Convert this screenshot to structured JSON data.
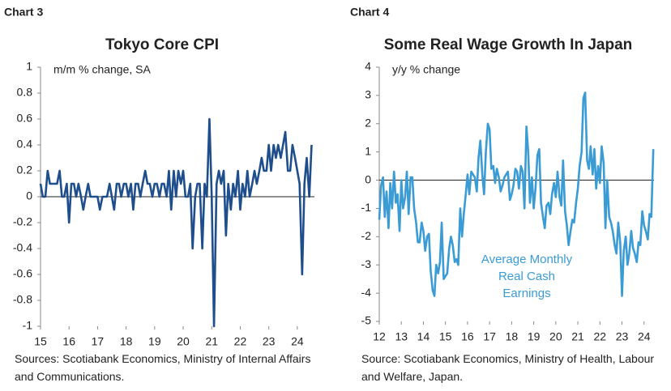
{
  "chart_data": [
    {
      "type": "line",
      "label": "Chart 3",
      "title": "Tokyo Core CPI",
      "ylabel": "m/m % change, SA",
      "source": "Sources: Scotiabank Economics, Ministry of Internal Affairs and Communications.",
      "xlim": [
        15,
        24.6
      ],
      "xticks": [
        15,
        16,
        17,
        18,
        19,
        20,
        21,
        22,
        23,
        24
      ],
      "ylim": [
        -1,
        1
      ],
      "yticks": [
        -1,
        -0.8,
        -0.6,
        -0.4,
        -0.2,
        0,
        0.2,
        0.4,
        0.6,
        0.8,
        1
      ],
      "series": [
        {
          "name": "Tokyo Core CPI",
          "color": "#1f4e8c",
          "x": [
            15,
            15.08,
            15.17,
            15.25,
            15.33,
            15.42,
            15.5,
            15.58,
            15.67,
            15.75,
            15.83,
            15.92,
            16,
            16.08,
            16.17,
            16.25,
            16.33,
            16.42,
            16.5,
            16.58,
            16.67,
            16.75,
            16.83,
            16.92,
            17,
            17.08,
            17.17,
            17.25,
            17.33,
            17.42,
            17.5,
            17.58,
            17.67,
            17.75,
            17.83,
            17.92,
            18,
            18.08,
            18.17,
            18.25,
            18.33,
            18.42,
            18.5,
            18.58,
            18.67,
            18.75,
            18.83,
            18.92,
            19,
            19.08,
            19.17,
            19.25,
            19.33,
            19.42,
            19.5,
            19.58,
            19.67,
            19.75,
            19.83,
            19.92,
            20,
            20.08,
            20.17,
            20.25,
            20.33,
            20.42,
            20.5,
            20.58,
            20.67,
            20.75,
            20.83,
            20.92,
            21,
            21.08,
            21.17,
            21.25,
            21.33,
            21.42,
            21.5,
            21.58,
            21.67,
            21.75,
            21.83,
            21.92,
            22,
            22.08,
            22.17,
            22.25,
            22.33,
            22.42,
            22.5,
            22.58,
            22.67,
            22.75,
            22.83,
            22.92,
            23,
            23.08,
            23.17,
            23.25,
            23.33,
            23.42,
            23.5,
            23.58,
            23.67,
            23.75,
            23.83,
            23.92,
            24,
            24.08,
            24.17,
            24.25,
            24.33,
            24.42,
            24.5
          ],
          "values": [
            0.1,
            0,
            0,
            0.2,
            0.1,
            0.1,
            0.1,
            0.1,
            0.2,
            0,
            0,
            0.1,
            -0.2,
            0.1,
            0.1,
            0,
            0.1,
            0,
            -0.1,
            0,
            0.1,
            0,
            0,
            0,
            0,
            -0.1,
            0,
            0,
            0,
            0.1,
            0,
            -0.1,
            0.1,
            0.1,
            0,
            0.1,
            0.1,
            0,
            0.1,
            -0.1,
            0.1,
            0.1,
            0,
            0.1,
            0.2,
            0.1,
            0.1,
            0,
            0.1,
            0.1,
            0,
            0.1,
            0.1,
            0,
            0.2,
            -0.1,
            0.2,
            0,
            0.2,
            0.1,
            0.2,
            0,
            0,
            0.1,
            -0.4,
            0,
            0.1,
            0.1,
            -0.4,
            0.1,
            0,
            0.6,
            0,
            -1,
            0.1,
            0.2,
            0.1,
            0.2,
            -0.3,
            0.1,
            -0.1,
            0.1,
            0,
            0.2,
            -0.1,
            0.1,
            0,
            0.2,
            0,
            0.1,
            0.2,
            0.1,
            0.2,
            0.3,
            0.2,
            0.2,
            0.4,
            0.2,
            0.4,
            0.3,
            0.4,
            0.3,
            0.4,
            0.5,
            0.2,
            0.2,
            0.4,
            0.3,
            0.2,
            0.1,
            -0.6,
            0.1,
            0.3,
            0,
            0.4
          ]
        }
      ]
    },
    {
      "type": "line",
      "label": "Chart 4",
      "title": "Some Real Wage Growth In Japan",
      "ylabel": "y/y % change",
      "source": "Source: Scotiabank Economics, Ministry of Health, Labour and Welfare, Japan.",
      "annotation": "Average Monthly Real Cash Earnings",
      "xlim": [
        12,
        24.45
      ],
      "xticks": [
        12,
        13,
        14,
        15,
        16,
        17,
        18,
        19,
        20,
        21,
        22,
        23,
        24
      ],
      "ylim": [
        -5,
        4
      ],
      "yticks": [
        -5,
        -4,
        -3,
        -2,
        -1,
        0,
        1,
        2,
        3,
        4
      ],
      "series": [
        {
          "name": "Average Monthly Real Cash Earnings",
          "color": "#3a9bd5",
          "x": [
            12,
            12.08,
            12.17,
            12.25,
            12.33,
            12.42,
            12.5,
            12.58,
            12.67,
            12.75,
            12.83,
            12.92,
            13,
            13.08,
            13.17,
            13.25,
            13.33,
            13.42,
            13.5,
            13.58,
            13.67,
            13.75,
            13.83,
            13.92,
            14,
            14.08,
            14.17,
            14.25,
            14.33,
            14.42,
            14.5,
            14.58,
            14.67,
            14.75,
            14.83,
            14.92,
            15,
            15.08,
            15.17,
            15.25,
            15.33,
            15.42,
            15.5,
            15.58,
            15.67,
            15.75,
            15.83,
            15.92,
            16,
            16.08,
            16.17,
            16.25,
            16.33,
            16.42,
            16.5,
            16.58,
            16.67,
            16.75,
            16.83,
            16.92,
            17,
            17.08,
            17.17,
            17.25,
            17.33,
            17.42,
            17.5,
            17.58,
            17.67,
            17.75,
            17.83,
            17.92,
            18,
            18.08,
            18.17,
            18.25,
            18.33,
            18.42,
            18.5,
            18.58,
            18.67,
            18.75,
            18.83,
            18.92,
            19,
            19.08,
            19.17,
            19.25,
            19.33,
            19.42,
            19.5,
            19.58,
            19.67,
            19.75,
            19.83,
            19.92,
            20,
            20.08,
            20.17,
            20.25,
            20.33,
            20.42,
            20.5,
            20.58,
            20.67,
            20.75,
            20.83,
            20.92,
            21,
            21.08,
            21.17,
            21.25,
            21.33,
            21.42,
            21.5,
            21.58,
            21.67,
            21.75,
            21.83,
            21.92,
            22,
            22.08,
            22.17,
            22.25,
            22.33,
            22.42,
            22.5,
            22.58,
            22.67,
            22.75,
            22.83,
            22.92,
            23,
            23.08,
            23.17,
            23.25,
            23.33,
            23.42,
            23.5,
            23.58,
            23.67,
            23.75,
            23.83,
            23.92,
            24,
            24.08,
            24.17,
            24.25,
            24.33,
            24.42
          ],
          "values": [
            -1.4,
            -0.2,
            0.1,
            -1.3,
            -0.4,
            -1.7,
            -0.1,
            -1,
            0.3,
            -0.8,
            -0.5,
            -1.8,
            0,
            -1,
            -0.6,
            0.3,
            -1.2,
            0.1,
            0.1,
            -1,
            -1.5,
            -2.2,
            -2.2,
            -1.5,
            -1.8,
            -2.5,
            -2,
            -1.9,
            -3.2,
            -3.9,
            -4.1,
            -3,
            -3.3,
            -2.9,
            -1.5,
            -3.5,
            -3.4,
            -3.3,
            -2.4,
            -2,
            -2.3,
            -2.9,
            -2.8,
            -3,
            -1,
            -2,
            -1.2,
            -0.5,
            0.2,
            -0.5,
            0.3,
            0.2,
            0.1,
            -0.4,
            0.8,
            1.4,
            0.2,
            -0.5,
            1,
            2,
            1.8,
            0.4,
            0.5,
            -0.1,
            0.4,
            0.1,
            -0.4,
            -0.2,
            0.1,
            0.2,
            0.3,
            -0.7,
            -0.5,
            -0.2,
            0.4,
            0.3,
            -0.3,
            0.5,
            0.3,
            -1,
            1.9,
            1,
            -0.8,
            0.1,
            -1,
            -0.3,
            0.9,
            1.1,
            -0.8,
            -1.3,
            -1.7,
            -0.9,
            -0.8,
            -1.2,
            -0.5,
            -0.1,
            -0.6,
            0.3,
            -0.6,
            -0.9,
            0.7,
            -1.1,
            -1.6,
            -2.3,
            -1.8,
            -1.4,
            -1.5,
            -0.8,
            -0.3,
            0.5,
            1,
            2.9,
            3.1,
            0.7,
            0.4,
            1.2,
            0.2,
            1.1,
            -0.3,
            0.5,
            -0.1,
            1.2,
            0.6,
            -1.7,
            0,
            -1.3,
            -1.5,
            -1.8,
            -2.3,
            -2.6,
            -1.5,
            -2.2,
            -4.1,
            -2.5,
            -2,
            -3,
            -2.6,
            -1.8,
            -2.4,
            -2.6,
            -2.9,
            -2.2,
            -2.3,
            -1.1,
            -1.6,
            -1.8,
            -2.1,
            -1.2,
            -1.3,
            1.1
          ]
        }
      ]
    }
  ]
}
